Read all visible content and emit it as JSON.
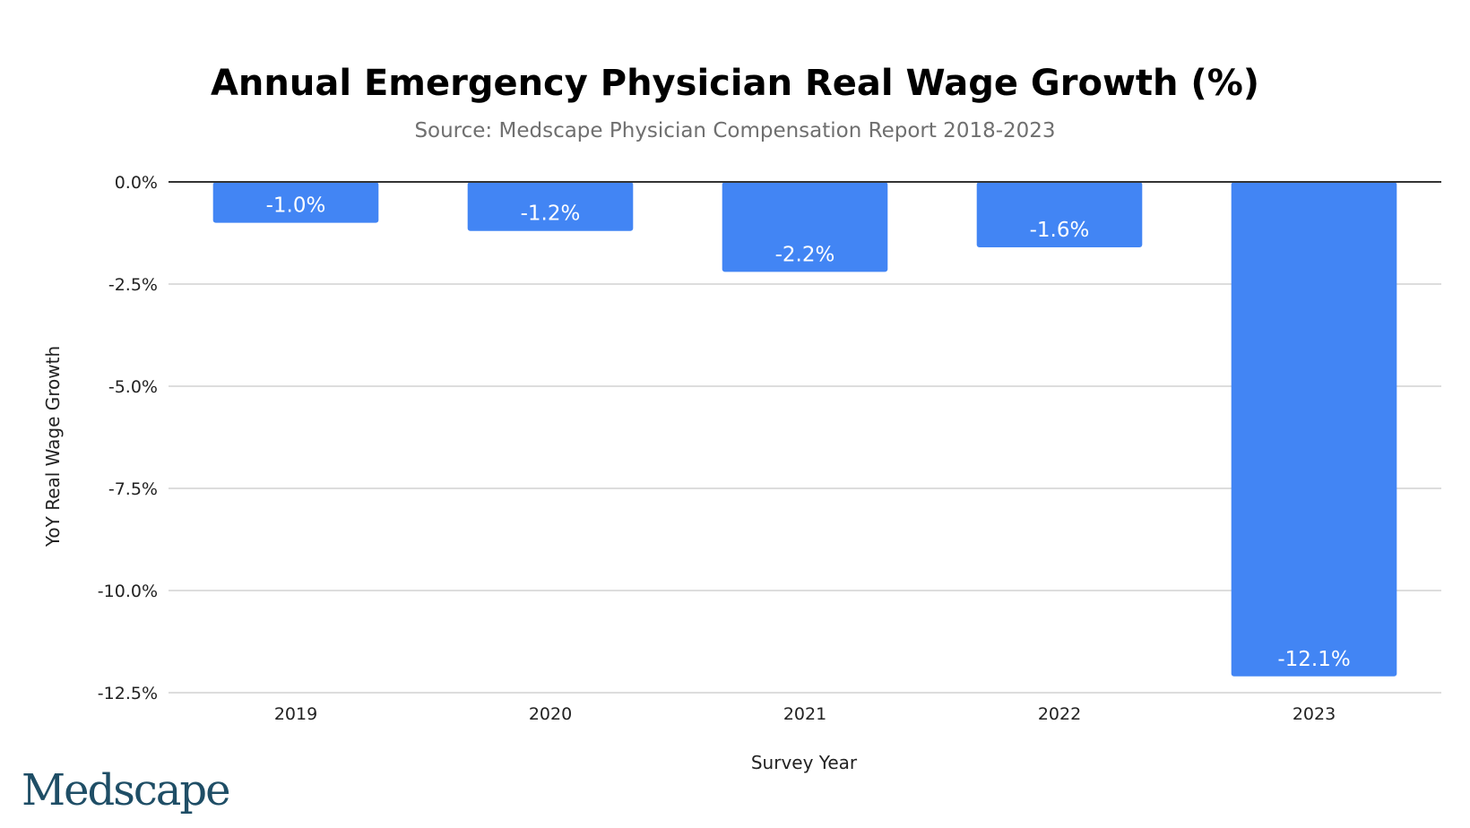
{
  "chart_data": {
    "type": "bar",
    "title": "Annual Emergency Physician Real Wage Growth (%)",
    "subtitle": "Source: Medscape Physician Compensation Report 2018-2023",
    "xlabel": "Survey Year",
    "ylabel": "YoY Real Wage Growth",
    "categories": [
      "2019",
      "2020",
      "2021",
      "2022",
      "2023"
    ],
    "values": [
      -1.0,
      -1.2,
      -2.2,
      -1.6,
      -12.1
    ],
    "value_labels": [
      "-1.0%",
      "-1.2%",
      "-2.2%",
      "-1.6%",
      "-12.1%"
    ],
    "ylim": [
      -12.5,
      0
    ],
    "yticks": [
      0,
      -2.5,
      -5,
      -7.5,
      -10,
      -12.5
    ],
    "ytick_labels": [
      "0.0%",
      "-2.5%",
      "-5.0%",
      "-7.5%",
      "-10.0%",
      "-12.5%"
    ],
    "grid": true,
    "legend": "none",
    "bar_color": "#4285f4",
    "gridline_color": "#dddddd",
    "zero_line_color": "#333333"
  },
  "logo": {
    "text": "Medscape",
    "color": "#1f4e66"
  }
}
